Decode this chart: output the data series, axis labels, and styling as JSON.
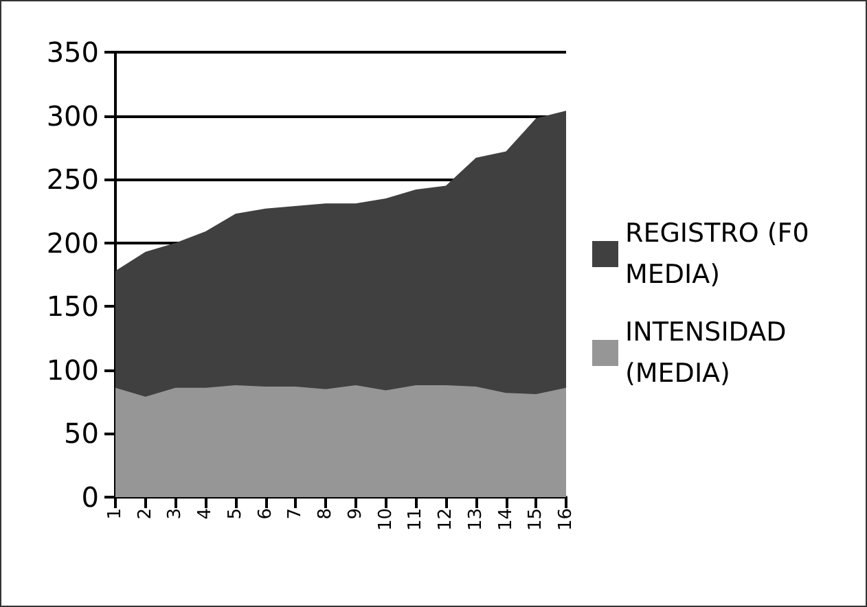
{
  "chart_data": {
    "type": "area",
    "categories": [
      "1",
      "2",
      "3",
      "4",
      "5",
      "6",
      "7",
      "8",
      "9",
      "10",
      "11",
      "12",
      "13",
      "14",
      "15",
      "16"
    ],
    "series": [
      {
        "name": "REGISTRO (F0 MEDIA)",
        "color": "#404040",
        "values": [
          178,
          193,
          200,
          209,
          223,
          227,
          229,
          231,
          231,
          235,
          242,
          245,
          267,
          272,
          298,
          304
        ]
      },
      {
        "name": "INTENSIDAD (MEDIA)",
        "color": "#969696",
        "values": [
          86,
          79,
          86,
          86,
          88,
          87,
          87,
          85,
          88,
          84,
          88,
          88,
          87,
          82,
          81,
          86
        ]
      }
    ],
    "ylim": [
      0,
      350
    ],
    "yticks": [
      0,
      50,
      100,
      150,
      200,
      250,
      300,
      350
    ],
    "grid": "y",
    "legend": "right"
  }
}
